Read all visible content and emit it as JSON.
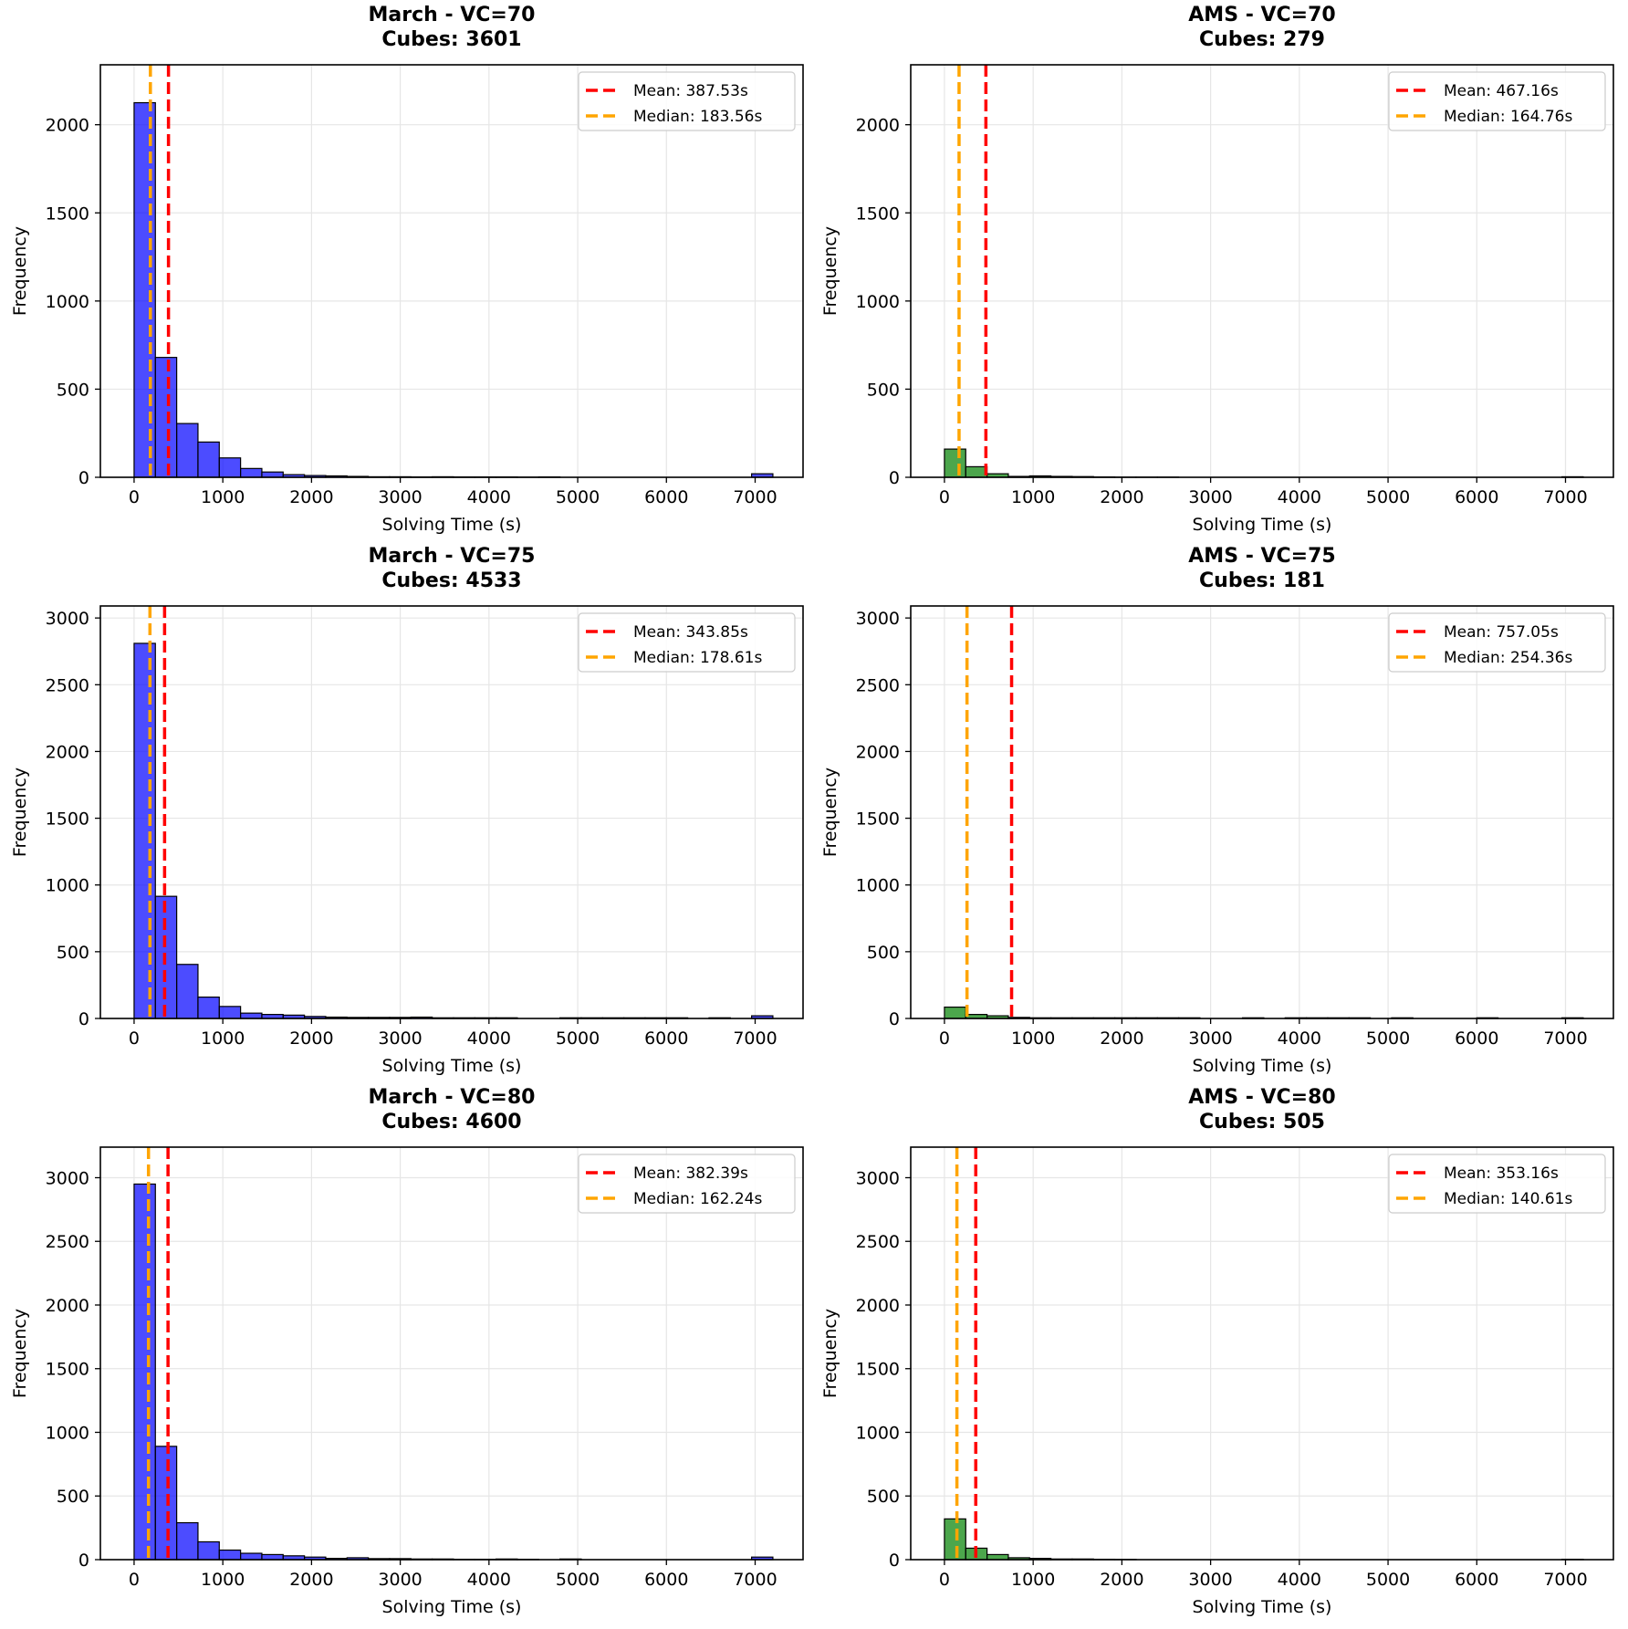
{
  "figure": {
    "xlabel": "Solving Time (s)",
    "ylabel": "Frequency",
    "mean_prefix": "Mean: ",
    "median_prefix": "Median: ",
    "suffix": "s"
  },
  "colors": {
    "march_bar": "#0000ff",
    "ams_bar": "#008000",
    "mean_line": "#ff0000",
    "median_line": "#ffa500",
    "grid": "#e6e6e6"
  },
  "chart_data": [
    {
      "type": "bar",
      "title_line1": "March - VC=70",
      "title_line2": "Cubes: 3601",
      "method": "March",
      "vc": 70,
      "cubes": 3601,
      "xlim": [
        -380,
        7540
      ],
      "ylim": [
        0,
        2340
      ],
      "xticks": [
        0,
        1000,
        2000,
        3000,
        4000,
        5000,
        6000,
        7000
      ],
      "yticks": [
        0,
        500,
        1000,
        1500,
        2000
      ],
      "bin_start": 0,
      "bin_width": 240,
      "counts": [
        2125,
        680,
        305,
        200,
        110,
        50,
        30,
        15,
        10,
        8,
        5,
        3,
        3,
        2,
        3,
        2,
        2,
        2,
        1,
        2,
        0,
        0,
        0,
        0,
        0,
        0,
        0,
        0,
        0,
        20
      ],
      "mean": 387.53,
      "median": 183.56,
      "mean_label": "387.53",
      "median_label": "183.56",
      "legend": "top-right"
    },
    {
      "type": "bar",
      "title_line1": "AMS - VC=70",
      "title_line2": "Cubes: 279",
      "method": "AMS",
      "vc": 70,
      "cubes": 279,
      "xlim": [
        -380,
        7540
      ],
      "ylim": [
        0,
        2340
      ],
      "xticks": [
        0,
        1000,
        2000,
        3000,
        4000,
        5000,
        6000,
        7000
      ],
      "yticks": [
        0,
        500,
        1000,
        1500,
        2000
      ],
      "bin_start": 0,
      "bin_width": 240,
      "counts": [
        160,
        60,
        20,
        5,
        8,
        5,
        4,
        2,
        1,
        1,
        1,
        0,
        0,
        0,
        0,
        0,
        0,
        0,
        0,
        0,
        0,
        0,
        0,
        0,
        0,
        0,
        0,
        0,
        0,
        3
      ],
      "mean": 467.16,
      "median": 164.76,
      "mean_label": "467.16",
      "median_label": "164.76",
      "legend": "top-right"
    },
    {
      "type": "bar",
      "title_line1": "March - VC=75",
      "title_line2": "Cubes: 4533",
      "method": "March",
      "vc": 75,
      "cubes": 4533,
      "xlim": [
        -380,
        7540
      ],
      "ylim": [
        0,
        3090
      ],
      "xticks": [
        0,
        1000,
        2000,
        3000,
        4000,
        5000,
        6000,
        7000
      ],
      "yticks": [
        0,
        500,
        1000,
        1500,
        2000,
        2500,
        3000
      ],
      "bin_start": 0,
      "bin_width": 240,
      "counts": [
        2810,
        915,
        405,
        160,
        90,
        40,
        30,
        25,
        15,
        10,
        8,
        8,
        8,
        10,
        5,
        5,
        5,
        5,
        0,
        0,
        5,
        5,
        5,
        5,
        5,
        5,
        0,
        5,
        0,
        20
      ],
      "mean": 343.85,
      "median": 178.61,
      "mean_label": "343.85",
      "median_label": "178.61",
      "legend": "top-right"
    },
    {
      "type": "bar",
      "title_line1": "AMS - VC=75",
      "title_line2": "Cubes: 181",
      "method": "AMS",
      "vc": 75,
      "cubes": 181,
      "xlim": [
        -380,
        7540
      ],
      "ylim": [
        0,
        3090
      ],
      "xticks": [
        0,
        1000,
        2000,
        3000,
        4000,
        5000,
        6000,
        7000
      ],
      "yticks": [
        0,
        500,
        1000,
        1500,
        2000,
        2500,
        3000
      ],
      "bin_start": 0,
      "bin_width": 240,
      "counts": [
        85,
        30,
        20,
        8,
        5,
        5,
        5,
        5,
        5,
        5,
        5,
        5,
        0,
        0,
        5,
        0,
        5,
        5,
        5,
        5,
        0,
        5,
        0,
        0,
        0,
        5,
        0,
        0,
        0,
        5
      ],
      "mean": 757.05,
      "median": 254.36,
      "mean_label": "757.05",
      "median_label": "254.36",
      "legend": "top-right"
    },
    {
      "type": "bar",
      "title_line1": "March - VC=80",
      "title_line2": "Cubes: 4600",
      "method": "March",
      "vc": 80,
      "cubes": 4600,
      "xlim": [
        -380,
        7540
      ],
      "ylim": [
        0,
        3240
      ],
      "xticks": [
        0,
        1000,
        2000,
        3000,
        4000,
        5000,
        6000,
        7000
      ],
      "yticks": [
        0,
        500,
        1000,
        1500,
        2000,
        2500,
        3000
      ],
      "bin_start": 0,
      "bin_width": 240,
      "counts": [
        2950,
        890,
        290,
        140,
        75,
        50,
        40,
        30,
        20,
        10,
        15,
        8,
        8,
        5,
        5,
        3,
        3,
        5,
        3,
        0,
        5,
        0,
        0,
        0,
        0,
        0,
        0,
        0,
        0,
        20
      ],
      "mean": 382.39,
      "median": 162.24,
      "mean_label": "382.39",
      "median_label": "162.24",
      "legend": "top-right"
    },
    {
      "type": "bar",
      "title_line1": "AMS - VC=80",
      "title_line2": "Cubes: 505",
      "method": "AMS",
      "vc": 80,
      "cubes": 505,
      "xlim": [
        -380,
        7540
      ],
      "ylim": [
        0,
        3240
      ],
      "xticks": [
        0,
        1000,
        2000,
        3000,
        4000,
        5000,
        6000,
        7000
      ],
      "yticks": [
        0,
        500,
        1000,
        1500,
        2000,
        2500,
        3000
      ],
      "bin_start": 0,
      "bin_width": 240,
      "counts": [
        320,
        90,
        40,
        15,
        10,
        5,
        5,
        3,
        2,
        0,
        0,
        0,
        0,
        0,
        0,
        0,
        0,
        0,
        0,
        0,
        0,
        0,
        0,
        0,
        0,
        0,
        0,
        0,
        0,
        3
      ],
      "mean": 353.16,
      "median": 140.61,
      "mean_label": "353.16",
      "median_label": "140.61",
      "legend": "top-right"
    }
  ]
}
